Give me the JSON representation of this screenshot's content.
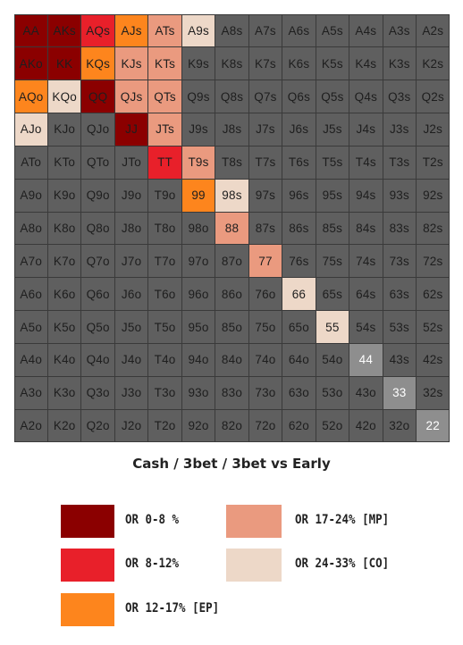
{
  "chart_data": {
    "type": "heatmap",
    "title": "Cash / 3bet / 3bet vs Early",
    "ranks": [
      "A",
      "K",
      "Q",
      "J",
      "T",
      "9",
      "8",
      "7",
      "6",
      "5",
      "4",
      "3",
      "2"
    ],
    "cells": [
      [
        "AA",
        "AKs",
        "AQs",
        "AJs",
        "ATs",
        "A9s",
        "A8s",
        "A7s",
        "A6s",
        "A5s",
        "A4s",
        "A3s",
        "A2s"
      ],
      [
        "AKo",
        "KK",
        "KQs",
        "KJs",
        "KTs",
        "K9s",
        "K8s",
        "K7s",
        "K6s",
        "K5s",
        "K4s",
        "K3s",
        "K2s"
      ],
      [
        "AQo",
        "KQo",
        "QQ",
        "QJs",
        "QTs",
        "Q9s",
        "Q8s",
        "Q7s",
        "Q6s",
        "Q5s",
        "Q4s",
        "Q3s",
        "Q2s"
      ],
      [
        "AJo",
        "KJo",
        "QJo",
        "JJ",
        "JTs",
        "J9s",
        "J8s",
        "J7s",
        "J6s",
        "J5s",
        "J4s",
        "J3s",
        "J2s"
      ],
      [
        "ATo",
        "KTo",
        "QTo",
        "JTo",
        "TT",
        "T9s",
        "T8s",
        "T7s",
        "T6s",
        "T5s",
        "T4s",
        "T3s",
        "T2s"
      ],
      [
        "A9o",
        "K9o",
        "Q9o",
        "J9o",
        "T9o",
        "99",
        "98s",
        "97s",
        "96s",
        "95s",
        "94s",
        "93s",
        "92s"
      ],
      [
        "A8o",
        "K8o",
        "Q8o",
        "J8o",
        "T8o",
        "98o",
        "88",
        "87s",
        "86s",
        "85s",
        "84s",
        "83s",
        "82s"
      ],
      [
        "A7o",
        "K7o",
        "Q7o",
        "J7o",
        "T7o",
        "97o",
        "87o",
        "77",
        "76s",
        "75s",
        "74s",
        "73s",
        "72s"
      ],
      [
        "A6o",
        "K6o",
        "Q6o",
        "J6o",
        "T6o",
        "96o",
        "86o",
        "76o",
        "66",
        "65s",
        "64s",
        "63s",
        "62s"
      ],
      [
        "A5o",
        "K5o",
        "Q5o",
        "J5o",
        "T5o",
        "95o",
        "85o",
        "75o",
        "65o",
        "55",
        "54s",
        "53s",
        "52s"
      ],
      [
        "A4o",
        "K4o",
        "Q4o",
        "J4o",
        "T4o",
        "94o",
        "84o",
        "74o",
        "64o",
        "54o",
        "44",
        "43s",
        "42s"
      ],
      [
        "A3o",
        "K3o",
        "Q3o",
        "J3o",
        "T3o",
        "93o",
        "83o",
        "73o",
        "63o",
        "53o",
        "43o",
        "33",
        "32s"
      ],
      [
        "A2o",
        "K2o",
        "Q2o",
        "J2o",
        "T2o",
        "92o",
        "82o",
        "72o",
        "62o",
        "52o",
        "42o",
        "32o",
        "22"
      ]
    ],
    "tiers": {
      "AA": "OR 0-8 %",
      "AKs": "OR 0-8 %",
      "AKo": "OR 0-8 %",
      "KK": "OR 0-8 %",
      "QQ": "OR 0-8 %",
      "JJ": "OR 0-8 %",
      "AQs": "OR 8-12%",
      "TT": "OR 8-12%",
      "AJs": "OR 12-17% [EP]",
      "KQs": "OR 12-17% [EP]",
      "AQo": "OR 12-17% [EP]",
      "99": "OR 12-17% [EP]",
      "ATs": "OR 17-24% [MP]",
      "KJs": "OR 17-24% [MP]",
      "KTs": "OR 17-24% [MP]",
      "QJs": "OR 17-24% [MP]",
      "QTs": "OR 17-24% [MP]",
      "JTs": "OR 17-24% [MP]",
      "T9s": "OR 17-24% [MP]",
      "88": "OR 17-24% [MP]",
      "77": "OR 17-24% [MP]",
      "A9s": "OR 24-33% [CO]",
      "KQo": "OR 24-33% [CO]",
      "AJo": "OR 24-33% [CO]",
      "98s": "OR 24-33% [CO]",
      "66": "OR 24-33% [CO]",
      "55": "OR 24-33% [CO]"
    },
    "pairs_not_in_range": [
      "44",
      "33",
      "22"
    ]
  },
  "legend": [
    {
      "label": "OR 0-8 %",
      "color": "#8b0000"
    },
    {
      "label": "OR 8-12%",
      "color": "#e8202a"
    },
    {
      "label": "OR 12-17% [EP]",
      "color": "#fd851d"
    },
    {
      "label": "OR 17-24% [MP]",
      "color": "#ea9a7f"
    },
    {
      "label": "OR 24-33% [CO]",
      "color": "#edd8c8"
    }
  ],
  "colors": {
    "default_cell": "#5f5f5f",
    "pair_not_in_range": "#8e8e8e",
    "dark_text": "#1e1e1e",
    "light_text": "#ffffff"
  }
}
